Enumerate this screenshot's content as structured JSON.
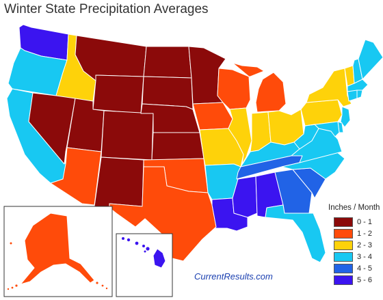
{
  "title": "Winter State Precipitation Averages",
  "credit": "CurrentResults.com",
  "legend": {
    "title": "Inches / Month",
    "items": [
      {
        "label": "0 - 1",
        "color": "#8b0a0a"
      },
      {
        "label": "1 - 2",
        "color": "#ff4b0a"
      },
      {
        "label": "2 - 3",
        "color": "#fed20a"
      },
      {
        "label": "3 - 4",
        "color": "#18c8f2"
      },
      {
        "label": "4 - 5",
        "color": "#2163e6"
      },
      {
        "label": "5 - 6",
        "color": "#3b14f0"
      }
    ]
  },
  "states": [
    {
      "id": "WA",
      "category": "5 - 6"
    },
    {
      "id": "OR",
      "category": "3 - 4"
    },
    {
      "id": "CA",
      "category": "3 - 4"
    },
    {
      "id": "ID",
      "category": "2 - 3"
    },
    {
      "id": "NV",
      "category": "0 - 1"
    },
    {
      "id": "MT",
      "category": "0 - 1"
    },
    {
      "id": "WY",
      "category": "0 - 1"
    },
    {
      "id": "UT",
      "category": "0 - 1"
    },
    {
      "id": "CO",
      "category": "0 - 1"
    },
    {
      "id": "AZ",
      "category": "1 - 2"
    },
    {
      "id": "NM",
      "category": "0 - 1"
    },
    {
      "id": "ND",
      "category": "0 - 1"
    },
    {
      "id": "SD",
      "category": "0 - 1"
    },
    {
      "id": "NE",
      "category": "0 - 1"
    },
    {
      "id": "KS",
      "category": "0 - 1"
    },
    {
      "id": "OK",
      "category": "1 - 2"
    },
    {
      "id": "TX",
      "category": "1 - 2"
    },
    {
      "id": "MN",
      "category": "0 - 1"
    },
    {
      "id": "IA",
      "category": "1 - 2"
    },
    {
      "id": "MO",
      "category": "2 - 3"
    },
    {
      "id": "AR",
      "category": "3 - 4"
    },
    {
      "id": "LA",
      "category": "5 - 6"
    },
    {
      "id": "WI",
      "category": "1 - 2"
    },
    {
      "id": "IL",
      "category": "2 - 3"
    },
    {
      "id": "MI",
      "category": "1 - 2"
    },
    {
      "id": "IN",
      "category": "2 - 3"
    },
    {
      "id": "OH",
      "category": "2 - 3"
    },
    {
      "id": "KY",
      "category": "3 - 4"
    },
    {
      "id": "TN",
      "category": "4 - 5"
    },
    {
      "id": "MS",
      "category": "5 - 6"
    },
    {
      "id": "AL",
      "category": "5 - 6"
    },
    {
      "id": "GA",
      "category": "4 - 5"
    },
    {
      "id": "FL",
      "category": "3 - 4"
    },
    {
      "id": "SC",
      "category": "4 - 5"
    },
    {
      "id": "NC",
      "category": "3 - 4"
    },
    {
      "id": "VA",
      "category": "3 - 4"
    },
    {
      "id": "WV",
      "category": "3 - 4"
    },
    {
      "id": "PA",
      "category": "2 - 3"
    },
    {
      "id": "NY",
      "category": "2 - 3"
    },
    {
      "id": "VT",
      "category": "2 - 3"
    },
    {
      "id": "NH",
      "category": "3 - 4"
    },
    {
      "id": "ME",
      "category": "3 - 4"
    },
    {
      "id": "MA",
      "category": "3 - 4"
    },
    {
      "id": "CT",
      "category": "3 - 4"
    },
    {
      "id": "RI",
      "category": "3 - 4"
    },
    {
      "id": "NJ",
      "category": "3 - 4"
    },
    {
      "id": "DE",
      "category": "3 - 4"
    },
    {
      "id": "MD",
      "category": "3 - 4"
    },
    {
      "id": "AK",
      "category": "1 - 2"
    },
    {
      "id": "HI",
      "category": "5 - 6"
    }
  ]
}
